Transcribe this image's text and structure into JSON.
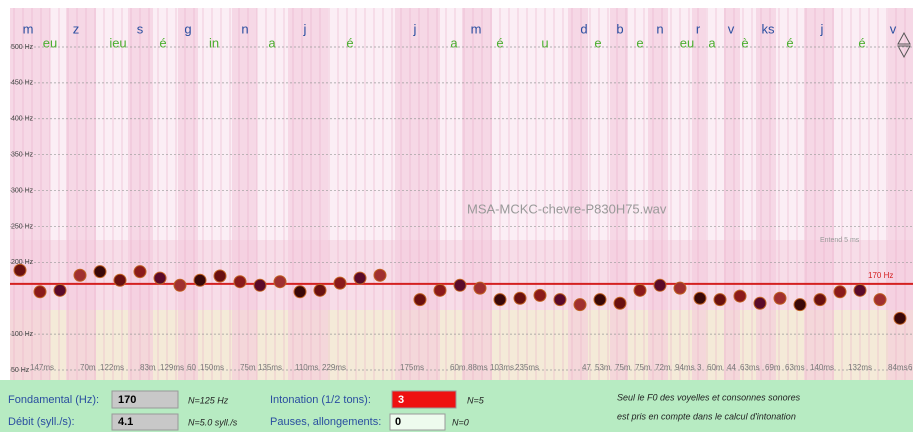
{
  "plot": {
    "filename": "MSA-MCKC-chevre-P830H75.wav",
    "note": "Entend 5 ms",
    "phonemes": [
      {
        "text": "m",
        "kind": "c"
      },
      {
        "text": "eu",
        "kind": "v"
      },
      {
        "text": "z",
        "kind": "c"
      },
      {
        "text": "ieu",
        "kind": "v"
      },
      {
        "text": "s",
        "kind": "c"
      },
      {
        "text": "é",
        "kind": "v"
      },
      {
        "text": "g",
        "kind": "c"
      },
      {
        "text": "in",
        "kind": "v"
      },
      {
        "text": "n",
        "kind": "c"
      },
      {
        "text": "a",
        "kind": "v"
      },
      {
        "text": "j",
        "kind": "c"
      },
      {
        "text": "é",
        "kind": "v"
      },
      {
        "text": "j",
        "kind": "c"
      },
      {
        "text": "a",
        "kind": "v"
      },
      {
        "text": "m",
        "kind": "c"
      },
      {
        "text": "é",
        "kind": "v"
      },
      {
        "text": "u",
        "kind": "v"
      },
      {
        "text": "d",
        "kind": "c"
      },
      {
        "text": "e",
        "kind": "v"
      },
      {
        "text": "b",
        "kind": "c"
      },
      {
        "text": "e",
        "kind": "v"
      },
      {
        "text": "n",
        "kind": "c"
      },
      {
        "text": "eu",
        "kind": "v"
      },
      {
        "text": "r",
        "kind": "c"
      },
      {
        "text": "a",
        "kind": "v"
      },
      {
        "text": "v",
        "kind": "c"
      },
      {
        "text": "è",
        "kind": "v"
      },
      {
        "text": "ks",
        "kind": "c"
      },
      {
        "text": "é",
        "kind": "v"
      },
      {
        "text": "j",
        "kind": "c"
      },
      {
        "text": "é",
        "kind": "v"
      },
      {
        "text": "v",
        "kind": "c"
      }
    ],
    "durations": [
      "147ms",
      "70m",
      "122ms",
      "83m",
      "129ms",
      "60",
      "150ms",
      "75m",
      "135ms",
      "110ms",
      "229ms",
      "175ms",
      "60m",
      "88ms",
      "103ms",
      "235ms",
      "47",
      "53m",
      "75m",
      "75m",
      "72m",
      "94ms",
      "3",
      "60m",
      "44",
      "63ms",
      "69m",
      "63ms",
      "140ms",
      "132ms",
      "84ms",
      "6"
    ],
    "ylim": [
      50,
      500
    ],
    "yticks": [
      {
        "value": 500,
        "label": "500 Hz"
      },
      {
        "value": 450,
        "label": "450 Hz"
      },
      {
        "value": 400,
        "label": "400 Hz"
      },
      {
        "value": 350,
        "label": "350 Hz"
      },
      {
        "value": 300,
        "label": "300 Hz"
      },
      {
        "value": 250,
        "label": "250 Hz"
      },
      {
        "value": 200,
        "label": "200 Hz"
      },
      {
        "value": 100,
        "label": "100 Hz"
      },
      {
        "value": 50,
        "label": "50 Hz"
      }
    ],
    "mean_line": {
      "value": 170,
      "label": "170 Hz",
      "color": "#d42020"
    },
    "pitch_hz": [
      189,
      159,
      161,
      182,
      187,
      175,
      187,
      178,
      168,
      175,
      181,
      173,
      168,
      173,
      159,
      161,
      171,
      178,
      182,
      null,
      148,
      161,
      168,
      164,
      148,
      150,
      154,
      148,
      141,
      148,
      143,
      161,
      168,
      164,
      150,
      148,
      153,
      143,
      150,
      141,
      148,
      159,
      161,
      148,
      122
    ]
  },
  "panel": {
    "f0_label": "Fondamental (Hz):",
    "f0_value": 170,
    "f0_norm": "N=125 Hz",
    "rate_label": "Débit (syll./s):",
    "rate_value": 4.1,
    "rate_norm": "N=5.0 syll./s",
    "inton_label": "Intonation (1/2 tons):",
    "inton_value": 3,
    "inton_norm": "N=5",
    "pause_label": "Pauses, allongements:",
    "pause_value": 0,
    "pause_norm": "N=0",
    "note_1": "Seul le F0 des voyelles et consonnes sonores",
    "note_2": "est pris en compte dans le calcul d'intonation"
  }
}
